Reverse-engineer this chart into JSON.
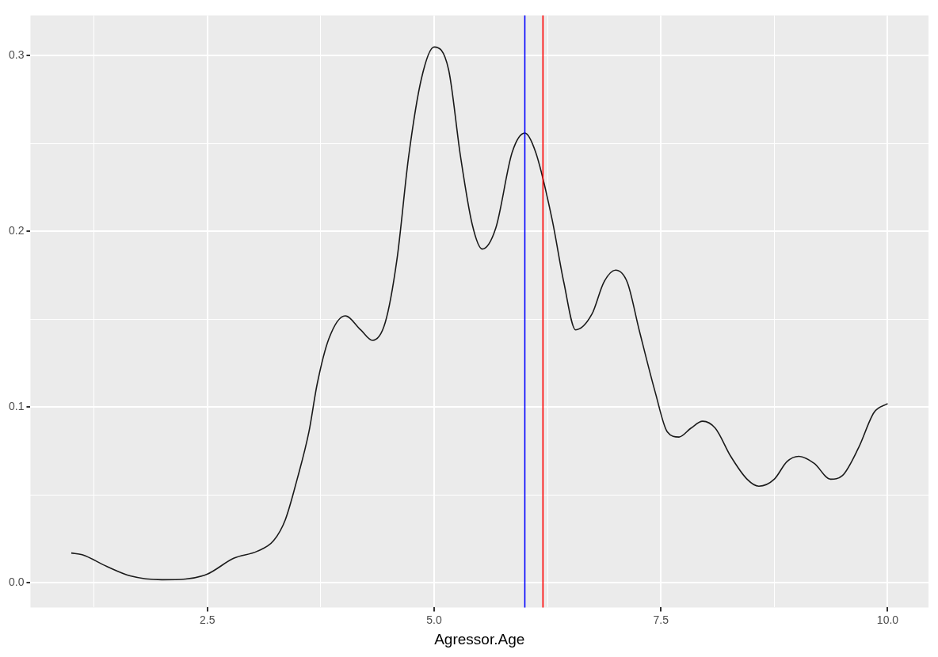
{
  "chart_data": {
    "type": "line",
    "xlabel": "Agressor.Age",
    "x": [
      1.0,
      1.12,
      1.39,
      1.65,
      2.0,
      2.26,
      2.5,
      2.79,
      3.05,
      3.23,
      3.36,
      3.49,
      3.62,
      3.71,
      3.84,
      4.02,
      4.19,
      4.32,
      4.46,
      4.59,
      4.72,
      4.86,
      5.0,
      5.16,
      5.29,
      5.42,
      5.53,
      5.68,
      5.86,
      6.0,
      6.12,
      6.3,
      6.43,
      6.56,
      6.74,
      6.87,
      7.0,
      7.13,
      7.26,
      7.44,
      7.57,
      7.7,
      7.83,
      7.96,
      8.1,
      8.27,
      8.45,
      8.58,
      8.75,
      8.89,
      9.02,
      9.19,
      9.37,
      9.5,
      9.68,
      9.85,
      10.0
    ],
    "series": [
      {
        "color": "#1a1a1a",
        "values": [
          0.017,
          0.016,
          0.0094,
          0.004,
          0.0018,
          0.0022,
          0.005,
          0.014,
          0.018,
          0.024,
          0.036,
          0.059,
          0.086,
          0.113,
          0.139,
          0.152,
          0.144,
          0.138,
          0.148,
          0.184,
          0.243,
          0.287,
          0.305,
          0.292,
          0.243,
          0.204,
          0.19,
          0.202,
          0.245,
          0.256,
          0.245,
          0.207,
          0.171,
          0.144,
          0.153,
          0.171,
          0.178,
          0.171,
          0.144,
          0.108,
          0.086,
          0.083,
          0.088,
          0.092,
          0.088,
          0.072,
          0.059,
          0.055,
          0.059,
          0.069,
          0.072,
          0.068,
          0.059,
          0.061,
          0.077,
          0.097,
          0.102
        ]
      }
    ],
    "xlim": [
      0.55,
      10.45
    ],
    "xticks": [
      {
        "value": 1.25,
        "label": null
      },
      2.5,
      {
        "value": 3.75,
        "label": null
      },
      {
        "value": 5,
        "label": "5.0"
      },
      {
        "value": 6.25,
        "label": null
      },
      7.5,
      {
        "value": 8.75,
        "label": null
      },
      {
        "value": 10,
        "label": "10.0"
      }
    ],
    "ylim": [
      -0.014,
      0.323
    ],
    "yticks": [
      {
        "value": 0,
        "label": "0.0"
      },
      {
        "value": 0.05,
        "label": null
      },
      0.1,
      {
        "value": 0.15,
        "label": null
      },
      0.2,
      {
        "value": 0.25,
        "label": null
      },
      0.3
    ],
    "grid": true,
    "marker": "none",
    "line_style": "solid",
    "legend": false,
    "ref_lines": [
      {
        "axis": "x",
        "value": 6.0,
        "color": "#0000ff"
      },
      {
        "axis": "x",
        "value": 6.2,
        "color": "#ff0000"
      }
    ]
  }
}
